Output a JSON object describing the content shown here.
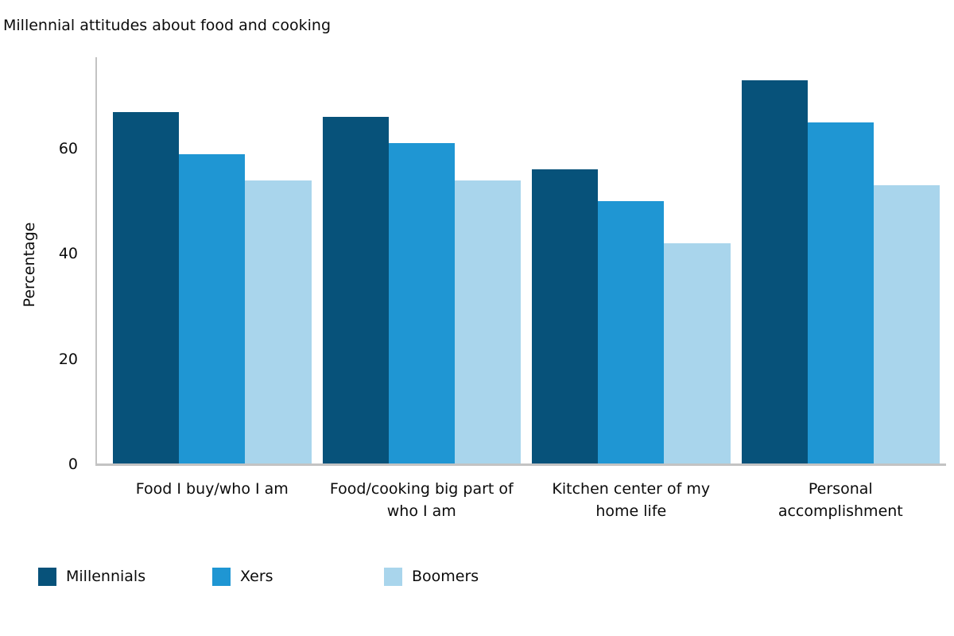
{
  "title": "Millennial attitudes about food and cooking",
  "ylabel": "Percentage",
  "axis_color": "#C3C3C3",
  "chart_data": {
    "type": "bar",
    "title": "Millennial attitudes about food and cooking",
    "xlabel": "",
    "ylabel": "Percentage",
    "categories": [
      "Food I buy/who I am",
      "Food/cooking big part of who I am",
      "Kitchen center of my home life",
      "Personal accomplishment"
    ],
    "category_lines": [
      [
        "Food I buy/who I am"
      ],
      [
        "Food/cooking big part of",
        "who I am"
      ],
      [
        "Kitchen center of my",
        "home life"
      ],
      [
        "Personal",
        "accomplishment"
      ]
    ],
    "series": [
      {
        "name": "Millennials",
        "color": "#07527A",
        "values": [
          67,
          66,
          56,
          73
        ]
      },
      {
        "name": "Xers",
        "color": "#1F96D3",
        "values": [
          59,
          61,
          50,
          65
        ]
      },
      {
        "name": "Boomers",
        "color": "#A9D5EC",
        "values": [
          54,
          54,
          42,
          53
        ]
      }
    ],
    "yticks": [
      0,
      20,
      40,
      60
    ],
    "ylim": [
      0,
      77.4
    ],
    "grid": false,
    "legend_position": "bottom-left"
  }
}
